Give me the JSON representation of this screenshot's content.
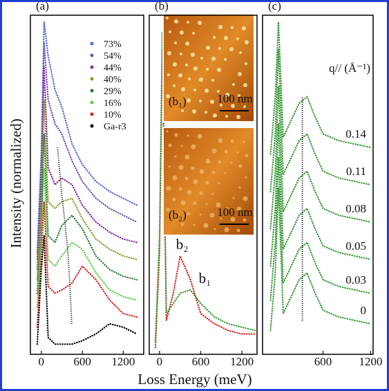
{
  "xlabel": "Loss Energy (meV)",
  "ylabel": "Intensity (normalized)",
  "chart_data": [
    {
      "type": "line",
      "title": "(a)",
      "legend": "upper right",
      "xlim": [
        -160,
        1500
      ],
      "xticks": [
        0,
        600,
        1200
      ],
      "ylim": [
        0,
        100
      ],
      "x": [
        -60,
        0,
        40,
        100,
        200,
        300,
        450,
        600,
        800,
        1000,
        1200,
        1400
      ],
      "series": [
        {
          "name": "73%",
          "color": "#5566d8",
          "values": [
            30,
            60,
            98,
            88,
            78,
            73,
            62,
            56,
            51,
            48,
            46,
            44
          ]
        },
        {
          "name": "54%",
          "color": "#7050b8",
          "values": [
            28,
            55,
            92,
            75,
            68,
            65,
            57,
            51,
            46,
            43,
            41,
            39
          ]
        },
        {
          "name": "44%",
          "color": "#8a2c9a",
          "values": [
            25,
            50,
            85,
            55,
            50,
            52,
            50,
            44,
            39,
            36,
            34,
            33
          ]
        },
        {
          "name": "40%",
          "color": "#8a9a2a",
          "values": [
            22,
            45,
            75,
            45,
            43,
            45,
            46,
            40,
            34,
            31,
            29,
            28
          ]
        },
        {
          "name": "29%",
          "color": "#2e7d3a",
          "values": [
            18,
            40,
            65,
            35,
            33,
            38,
            41,
            37,
            29,
            25,
            23,
            22
          ]
        },
        {
          "name": "16%",
          "color": "#5ccf4a",
          "values": [
            14,
            35,
            55,
            28,
            26,
            29,
            33,
            31,
            24,
            19,
            17,
            16
          ]
        },
        {
          "name": "10%",
          "color": "#e02020",
          "values": [
            8,
            30,
            45,
            20,
            18,
            19,
            21,
            26,
            22,
            16,
            12,
            11
          ]
        },
        {
          "name": "Ga-r3",
          "color": "#000000",
          "values": [
            3,
            25,
            35,
            5,
            3,
            3,
            3,
            4,
            6,
            9,
            8,
            6
          ]
        }
      ],
      "guide": {
        "x": [
          238,
          300,
          340,
          390,
          420,
          445
        ],
        "values": [
          61,
          47,
          40,
          30,
          20,
          9
        ]
      }
    },
    {
      "type": "line",
      "title": "(b)",
      "xlim": [
        -150,
        1420
      ],
      "xticks": [
        0,
        600,
        1200
      ],
      "ylim": [
        0,
        100
      ],
      "x": [
        -60,
        0,
        40,
        100,
        200,
        300,
        450,
        600,
        800,
        1000,
        1200,
        1400
      ],
      "series": [
        {
          "name": "b₂",
          "color": "#e02020",
          "values": [
            2,
            30,
            90,
            10,
            18,
            29,
            22,
            12,
            9,
            7,
            6,
            6
          ]
        },
        {
          "name": "b₁",
          "color": "#3a9a3a",
          "values": [
            4,
            35,
            95,
            12,
            15,
            18,
            19,
            15,
            11,
            9,
            8,
            7
          ]
        }
      ],
      "insets": [
        {
          "label": "(b₁)",
          "scale": "100 nm"
        },
        {
          "label": "(b₂)",
          "scale": "100 nm"
        }
      ]
    },
    {
      "type": "line",
      "title": "(c)",
      "header": "q// (Å⁻¹)",
      "xlim": [
        -160,
        1230
      ],
      "xticks": [
        600,
        1200
      ],
      "ylim": [
        0,
        100
      ],
      "x": [
        -60,
        0,
        40,
        100,
        200,
        300,
        400,
        500,
        600,
        800,
        1000,
        1200
      ],
      "series": [
        {
          "name": "0.14",
          "color": "#3a9a3a",
          "values": [
            59,
            76,
            98,
            64,
            69,
            74,
            76,
            70,
            65,
            63,
            62,
            61
          ]
        },
        {
          "name": "0.11",
          "color": "#3a9a3a",
          "values": [
            48,
            65,
            90,
            53,
            58,
            63,
            65,
            59,
            54,
            52,
            51,
            50
          ]
        },
        {
          "name": "0.08",
          "color": "#3a9a3a",
          "values": [
            37,
            54,
            79,
            42,
            47,
            52,
            54,
            48,
            43,
            41,
            40,
            39
          ]
        },
        {
          "name": "0.05",
          "color": "#3a9a3a",
          "values": [
            26,
            43,
            68,
            31,
            36,
            41,
            43,
            37,
            32,
            30,
            29,
            28
          ]
        },
        {
          "name": "0.03",
          "color": "#3a9a3a",
          "values": [
            16,
            33,
            58,
            21,
            26,
            31,
            33,
            27,
            22,
            20,
            19,
            18
          ]
        },
        {
          "name": "0",
          "color": "#3a9a3a",
          "values": [
            7,
            24,
            49,
            12,
            17,
            22,
            24,
            18,
            13,
            11,
            10,
            9
          ]
        }
      ],
      "guide": {
        "x": [
          340,
          340
        ],
        "values": [
          10,
          76
        ]
      }
    }
  ]
}
